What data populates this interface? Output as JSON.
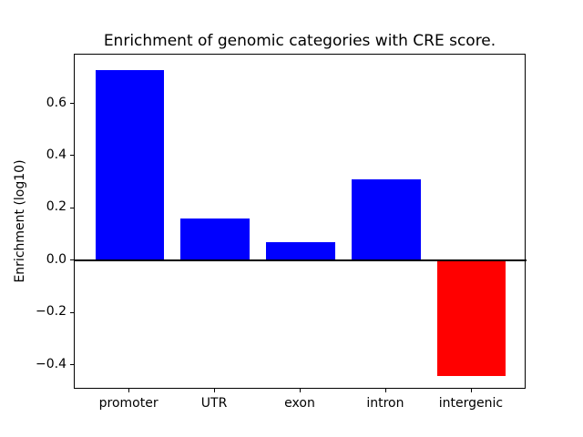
{
  "chart_data": {
    "type": "bar",
    "title": "Enrichment of genomic categories with CRE score.",
    "xlabel": "",
    "ylabel": "Enrichment (log10)",
    "categories": [
      "promoter",
      "UTR",
      "exon",
      "intron",
      "intergenic"
    ],
    "values": [
      0.73,
      0.16,
      0.07,
      0.31,
      -0.44
    ],
    "bar_colors": [
      "#0000ff",
      "#0000ff",
      "#0000ff",
      "#0000ff",
      "#ff0000"
    ],
    "positive_color": "#0000ff",
    "negative_color": "#ff0000",
    "yticks": {
      "values": [
        0.6,
        0.4,
        0.2,
        0.0,
        -0.2,
        -0.4
      ],
      "labels": [
        "0.6",
        "0.4",
        "0.2",
        "0.0",
        "−0.2",
        "−0.4"
      ]
    },
    "ylim": [
      -0.493,
      0.788
    ],
    "grid": false,
    "legend": null,
    "zero_line": {
      "show": true,
      "color": "#000000"
    },
    "spine_color": "#000000",
    "background_color": "#ffffff"
  }
}
